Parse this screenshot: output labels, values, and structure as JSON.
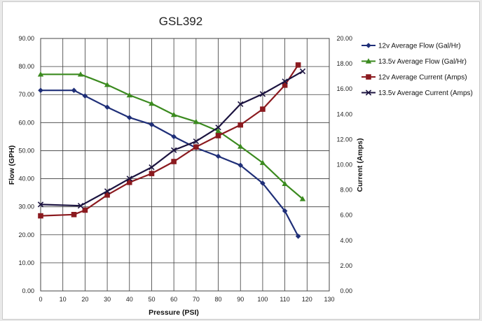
{
  "chart_data": {
    "type": "line",
    "title": "GSL392",
    "xlabel": "Pressure (PSI)",
    "ylabel": "Flow (GPH)",
    "y2label": "Current (Amps)",
    "xlim": [
      0,
      130
    ],
    "ylim": [
      0,
      90
    ],
    "y2lim": [
      0,
      20
    ],
    "x_ticks": [
      "0",
      "10",
      "20",
      "30",
      "40",
      "50",
      "60",
      "70",
      "80",
      "90",
      "100",
      "110",
      "120",
      "130"
    ],
    "y_ticks": [
      "0.00",
      "10.00",
      "20.00",
      "30.00",
      "40.00",
      "50.00",
      "60.00",
      "70.00",
      "80.00",
      "90.00"
    ],
    "y2_ticks": [
      "0.00",
      "2.00",
      "4.00",
      "6.00",
      "8.00",
      "10.00",
      "12.00",
      "14.00",
      "16.00",
      "18.00",
      "20.00"
    ],
    "grid": true,
    "legend_position": "right",
    "series": [
      {
        "name": "12v Average Flow (Gal/Hr)",
        "axis": "left",
        "color": "#1f2f78",
        "marker": "diamond",
        "x": [
          0,
          15,
          20,
          30,
          40,
          50,
          60,
          70,
          80,
          90,
          100,
          110,
          116
        ],
        "values": [
          71.5,
          71.5,
          69.5,
          65.5,
          61.8,
          59.3,
          55.0,
          51.0,
          48.0,
          44.8,
          38.4,
          28.5,
          19.5
        ]
      },
      {
        "name": "13.5v Average Flow (Gal/Hr)",
        "axis": "left",
        "color": "#3b8a1f",
        "marker": "triangle",
        "x": [
          0,
          18,
          30,
          40,
          50,
          60,
          70,
          80,
          90,
          100,
          110,
          118
        ],
        "values": [
          77.2,
          77.2,
          73.5,
          69.8,
          66.8,
          62.8,
          60.3,
          57.0,
          51.5,
          45.7,
          38.2,
          32.8
        ]
      },
      {
        "name": "12v Average Current (Amps)",
        "axis": "right",
        "color": "#8b1a1f",
        "marker": "square",
        "x": [
          0,
          15,
          20,
          30,
          40,
          50,
          60,
          70,
          80,
          90,
          100,
          110,
          116
        ],
        "values": [
          5.95,
          6.05,
          6.4,
          7.6,
          8.6,
          9.3,
          10.25,
          11.4,
          12.3,
          13.15,
          14.4,
          16.3,
          17.9
        ]
      },
      {
        "name": "13.5v Average Current (Amps)",
        "axis": "right",
        "color": "#1c1440",
        "marker": "x",
        "x": [
          0,
          18,
          30,
          40,
          50,
          60,
          70,
          80,
          90,
          100,
          110,
          118
        ],
        "values": [
          6.85,
          6.75,
          7.9,
          8.9,
          9.8,
          11.15,
          11.85,
          12.95,
          14.8,
          15.6,
          16.6,
          17.4
        ]
      }
    ]
  }
}
